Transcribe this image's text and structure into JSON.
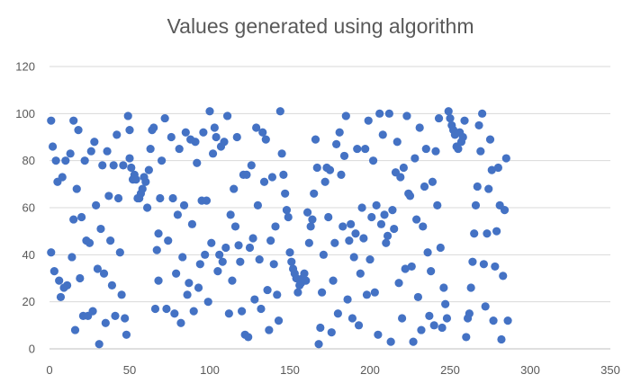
{
  "chart_data": {
    "type": "scatter",
    "title": "Values generated using algorithm",
    "xlabel": "",
    "ylabel": "",
    "xlim": [
      0,
      350
    ],
    "ylim": [
      0,
      120
    ],
    "xticks": [
      0,
      50,
      100,
      150,
      200,
      250,
      300,
      350
    ],
    "yticks": [
      0,
      20,
      40,
      60,
      80,
      100,
      120
    ],
    "grid": "horizontal",
    "marker_color": "#4472c4",
    "points": [
      [
        1,
        97
      ],
      [
        1,
        41
      ],
      [
        2,
        86
      ],
      [
        3,
        33
      ],
      [
        4,
        80
      ],
      [
        5,
        71
      ],
      [
        6,
        29
      ],
      [
        7,
        22
      ],
      [
        8,
        73
      ],
      [
        9,
        26
      ],
      [
        10,
        80
      ],
      [
        11,
        27
      ],
      [
        13,
        83
      ],
      [
        14,
        39
      ],
      [
        15,
        55
      ],
      [
        15,
        97
      ],
      [
        16,
        8
      ],
      [
        17,
        68
      ],
      [
        18,
        93
      ],
      [
        19,
        30
      ],
      [
        20,
        56
      ],
      [
        21,
        14
      ],
      [
        22,
        80
      ],
      [
        23,
        46
      ],
      [
        24,
        14
      ],
      [
        25,
        45
      ],
      [
        26,
        84
      ],
      [
        27,
        16
      ],
      [
        28,
        88
      ],
      [
        29,
        61
      ],
      [
        30,
        34
      ],
      [
        31,
        2
      ],
      [
        32,
        51
      ],
      [
        33,
        78
      ],
      [
        34,
        32
      ],
      [
        35,
        11
      ],
      [
        36,
        84
      ],
      [
        37,
        65
      ],
      [
        38,
        46
      ],
      [
        39,
        27
      ],
      [
        40,
        78
      ],
      [
        41,
        14
      ],
      [
        42,
        91
      ],
      [
        43,
        64
      ],
      [
        44,
        41
      ],
      [
        45,
        23
      ],
      [
        46,
        78
      ],
      [
        47,
        13
      ],
      [
        48,
        6
      ],
      [
        49,
        99
      ],
      [
        50,
        93
      ],
      [
        50,
        81
      ],
      [
        51,
        77
      ],
      [
        52,
        72
      ],
      [
        53,
        74
      ],
      [
        54,
        72
      ],
      [
        55,
        64
      ],
      [
        56,
        64
      ],
      [
        57,
        66
      ],
      [
        58,
        68
      ],
      [
        59,
        73
      ],
      [
        60,
        71
      ],
      [
        61,
        60
      ],
      [
        62,
        76
      ],
      [
        63,
        85
      ],
      [
        64,
        93
      ],
      [
        65,
        94
      ],
      [
        66,
        17
      ],
      [
        67,
        42
      ],
      [
        68,
        49
      ],
      [
        68,
        29
      ],
      [
        69,
        64
      ],
      [
        70,
        80
      ],
      [
        72,
        98
      ],
      [
        73,
        17
      ],
      [
        74,
        46
      ],
      [
        76,
        90
      ],
      [
        77,
        64
      ],
      [
        78,
        15
      ],
      [
        79,
        32
      ],
      [
        80,
        57
      ],
      [
        81,
        85
      ],
      [
        82,
        11
      ],
      [
        83,
        39
      ],
      [
        84,
        61
      ],
      [
        85,
        92
      ],
      [
        86,
        23
      ],
      [
        87,
        28
      ],
      [
        88,
        89
      ],
      [
        89,
        53
      ],
      [
        90,
        16
      ],
      [
        91,
        88
      ],
      [
        92,
        79
      ],
      [
        93,
        26
      ],
      [
        94,
        36
      ],
      [
        95,
        63
      ],
      [
        96,
        92
      ],
      [
        97,
        40
      ],
      [
        98,
        63
      ],
      [
        99,
        20
      ],
      [
        100,
        101
      ],
      [
        101,
        45
      ],
      [
        102,
        83
      ],
      [
        103,
        94
      ],
      [
        104,
        90
      ],
      [
        105,
        33
      ],
      [
        106,
        40
      ],
      [
        107,
        86
      ],
      [
        108,
        37
      ],
      [
        109,
        88
      ],
      [
        110,
        43
      ],
      [
        111,
        99
      ],
      [
        112,
        15
      ],
      [
        113,
        57
      ],
      [
        114,
        29
      ],
      [
        115,
        68
      ],
      [
        116,
        52
      ],
      [
        117,
        90
      ],
      [
        118,
        44
      ],
      [
        119,
        37
      ],
      [
        120,
        16
      ],
      [
        121,
        74
      ],
      [
        122,
        6
      ],
      [
        123,
        74
      ],
      [
        124,
        5
      ],
      [
        125,
        43
      ],
      [
        126,
        78
      ],
      [
        127,
        47
      ],
      [
        128,
        21
      ],
      [
        129,
        94
      ],
      [
        130,
        61
      ],
      [
        131,
        38
      ],
      [
        132,
        17
      ],
      [
        133,
        92
      ],
      [
        134,
        71
      ],
      [
        135,
        89
      ],
      [
        136,
        25
      ],
      [
        137,
        8
      ],
      [
        138,
        46
      ],
      [
        139,
        73
      ],
      [
        140,
        36
      ],
      [
        141,
        52
      ],
      [
        142,
        23
      ],
      [
        143,
        12
      ],
      [
        144,
        101
      ],
      [
        145,
        83
      ],
      [
        146,
        74
      ],
      [
        147,
        66
      ],
      [
        148,
        59
      ],
      [
        149,
        56
      ],
      [
        150,
        41
      ],
      [
        151,
        37
      ],
      [
        152,
        34
      ],
      [
        153,
        32
      ],
      [
        154,
        30
      ],
      [
        155,
        24
      ],
      [
        156,
        27
      ],
      [
        157,
        28
      ],
      [
        158,
        30
      ],
      [
        159,
        32
      ],
      [
        160,
        29
      ],
      [
        161,
        58
      ],
      [
        162,
        45
      ],
      [
        163,
        52
      ],
      [
        164,
        55
      ],
      [
        165,
        66
      ],
      [
        166,
        89
      ],
      [
        167,
        77
      ],
      [
        168,
        2
      ],
      [
        169,
        9
      ],
      [
        170,
        24
      ],
      [
        171,
        40
      ],
      [
        172,
        71
      ],
      [
        173,
        77
      ],
      [
        174,
        56
      ],
      [
        175,
        76
      ],
      [
        176,
        7
      ],
      [
        177,
        29
      ],
      [
        178,
        45
      ],
      [
        179,
        87
      ],
      [
        180,
        15
      ],
      [
        181,
        92
      ],
      [
        182,
        74
      ],
      [
        183,
        52
      ],
      [
        184,
        82
      ],
      [
        185,
        99
      ],
      [
        186,
        21
      ],
      [
        187,
        46
      ],
      [
        188,
        53
      ],
      [
        189,
        13
      ],
      [
        190,
        39
      ],
      [
        191,
        49
      ],
      [
        192,
        85
      ],
      [
        193,
        10
      ],
      [
        194,
        32
      ],
      [
        195,
        60
      ],
      [
        196,
        47
      ],
      [
        197,
        85
      ],
      [
        198,
        23
      ],
      [
        199,
        97
      ],
      [
        200,
        38
      ],
      [
        201,
        56
      ],
      [
        202,
        80
      ],
      [
        203,
        24
      ],
      [
        204,
        61
      ],
      [
        205,
        6
      ],
      [
        206,
        100
      ],
      [
        207,
        53
      ],
      [
        208,
        91
      ],
      [
        209,
        57
      ],
      [
        210,
        45
      ],
      [
        211,
        48
      ],
      [
        212,
        100
      ],
      [
        213,
        3
      ],
      [
        214,
        59
      ],
      [
        215,
        51
      ],
      [
        216,
        75
      ],
      [
        217,
        88
      ],
      [
        218,
        28
      ],
      [
        219,
        73
      ],
      [
        220,
        13
      ],
      [
        221,
        77
      ],
      [
        222,
        34
      ],
      [
        223,
        99
      ],
      [
        224,
        66
      ],
      [
        225,
        65
      ],
      [
        226,
        35
      ],
      [
        227,
        3
      ],
      [
        228,
        81
      ],
      [
        229,
        55
      ],
      [
        230,
        22
      ],
      [
        231,
        94
      ],
      [
        232,
        8
      ],
      [
        233,
        52
      ],
      [
        234,
        69
      ],
      [
        235,
        85
      ],
      [
        236,
        41
      ],
      [
        237,
        14
      ],
      [
        238,
        33
      ],
      [
        239,
        71
      ],
      [
        240,
        10
      ],
      [
        241,
        84
      ],
      [
        242,
        61
      ],
      [
        243,
        98
      ],
      [
        244,
        43
      ],
      [
        245,
        9
      ],
      [
        246,
        26
      ],
      [
        247,
        19
      ],
      [
        248,
        13
      ],
      [
        249,
        101
      ],
      [
        250,
        98
      ],
      [
        251,
        95
      ],
      [
        252,
        93
      ],
      [
        253,
        91
      ],
      [
        254,
        86
      ],
      [
        255,
        85
      ],
      [
        256,
        92
      ],
      [
        257,
        88
      ],
      [
        258,
        90
      ],
      [
        259,
        97
      ],
      [
        260,
        5
      ],
      [
        261,
        13
      ],
      [
        262,
        15
      ],
      [
        263,
        26
      ],
      [
        264,
        37
      ],
      [
        265,
        49
      ],
      [
        266,
        61
      ],
      [
        267,
        69
      ],
      [
        268,
        95
      ],
      [
        269,
        84
      ],
      [
        270,
        100
      ],
      [
        271,
        36
      ],
      [
        272,
        18
      ],
      [
        273,
        49
      ],
      [
        274,
        68
      ],
      [
        275,
        89
      ],
      [
        276,
        76
      ],
      [
        277,
        12
      ],
      [
        278,
        35
      ],
      [
        279,
        50
      ],
      [
        280,
        77
      ],
      [
        281,
        61
      ],
      [
        282,
        4
      ],
      [
        283,
        31
      ],
      [
        284,
        59
      ],
      [
        285,
        81
      ],
      [
        286,
        12
      ]
    ]
  }
}
